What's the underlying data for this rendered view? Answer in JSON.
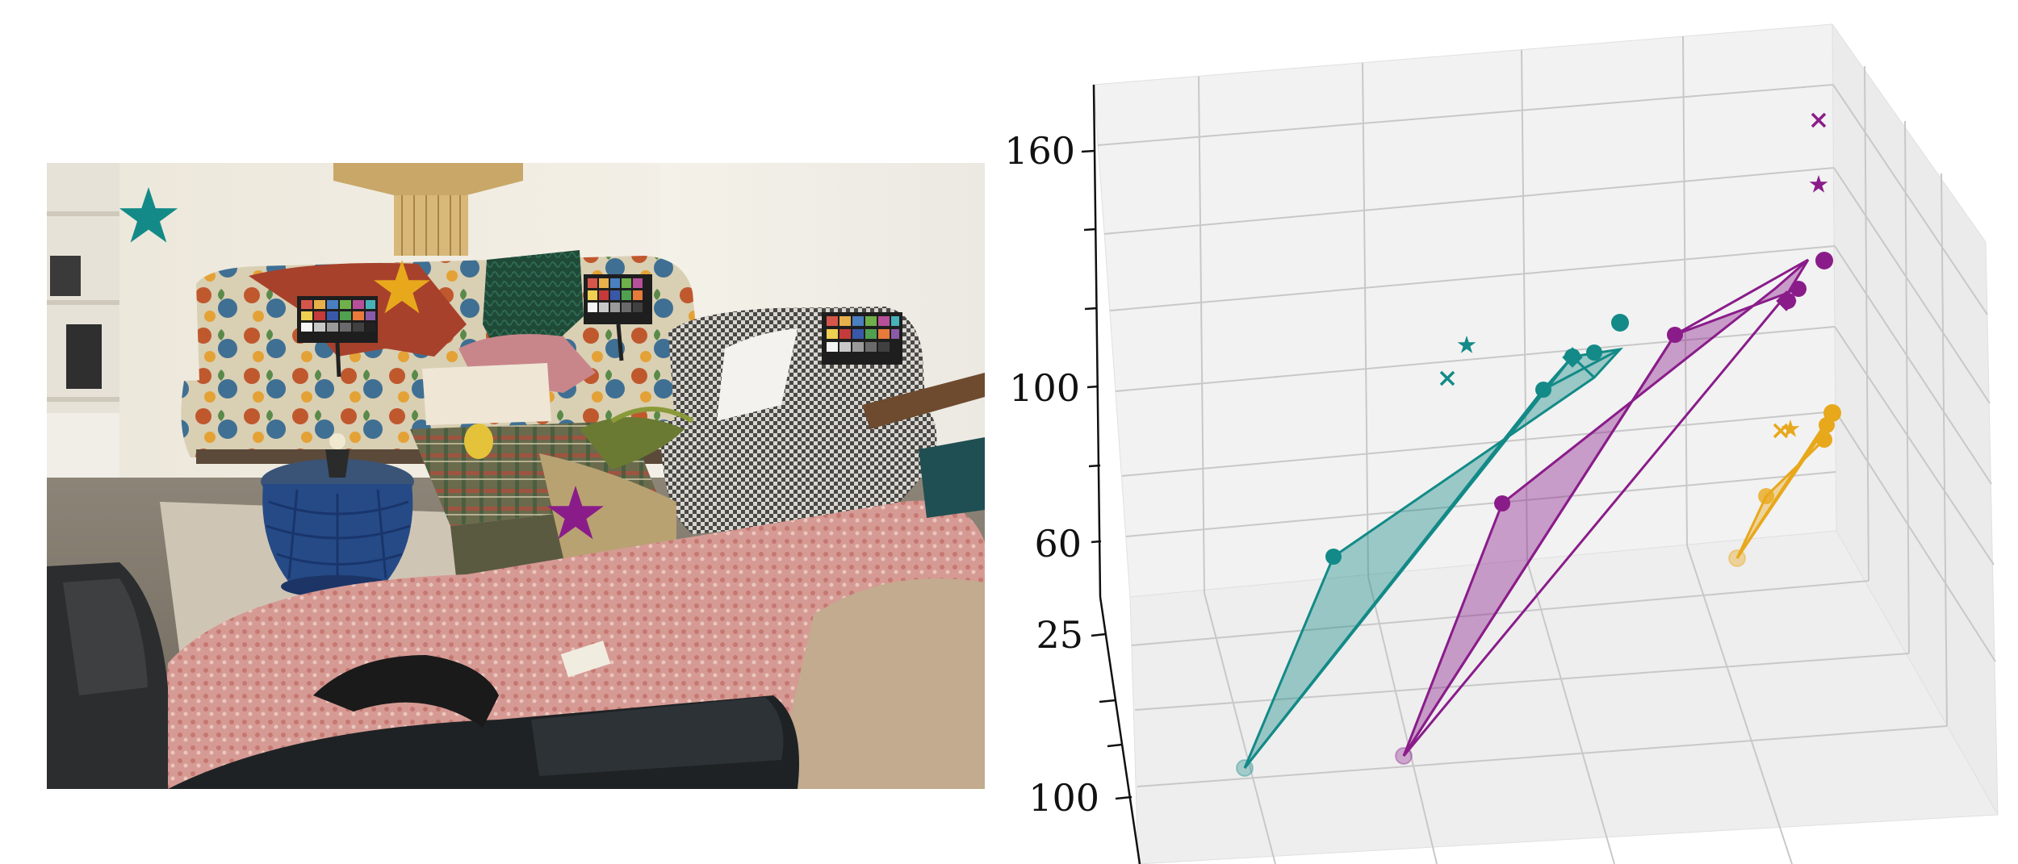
{
  "colors": {
    "teal": "#138a87",
    "purple": "#8a1c8a",
    "gold": "#e8a81c"
  },
  "photo": {
    "markers": [
      {
        "name": "teal-star",
        "color": "teal"
      },
      {
        "name": "gold-star",
        "color": "gold"
      },
      {
        "name": "purple-star",
        "color": "purple"
      }
    ]
  },
  "chart_data": {
    "type": "scatter",
    "projection": "3d",
    "z_ticks": [
      "160",
      "100",
      "60",
      "25"
    ],
    "y_ticks": [
      "100"
    ],
    "grid": true,
    "series": [
      {
        "color": "teal",
        "polygon": "filled-translucent",
        "markers": [
          "circle",
          "diamond",
          "star",
          "x"
        ]
      },
      {
        "color": "purple",
        "polygon": "filled-translucent",
        "markers": [
          "circle",
          "diamond",
          "star",
          "x"
        ]
      },
      {
        "color": "gold",
        "polygon": "filled-translucent",
        "markers": [
          "circle",
          "x"
        ]
      }
    ]
  }
}
